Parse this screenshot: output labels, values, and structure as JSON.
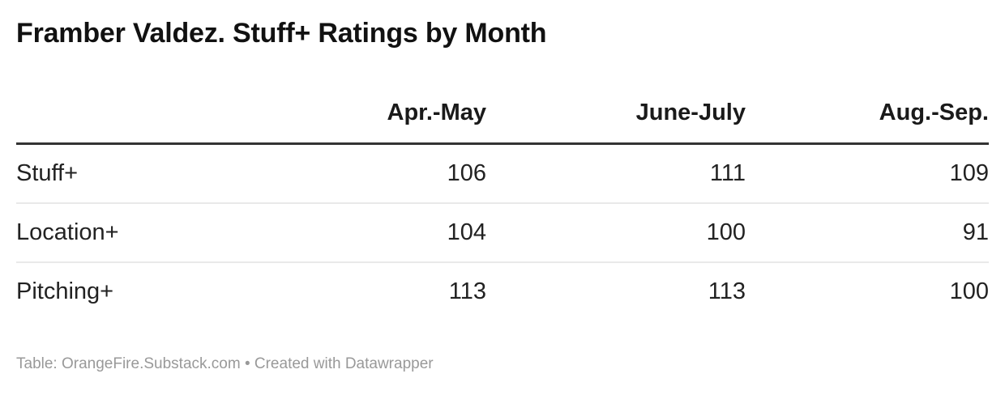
{
  "title": "Framber Valdez. Stuff+ Ratings by Month",
  "table": {
    "columns": [
      "Apr.-May",
      "June-July",
      "Aug.-Sep."
    ],
    "rows": [
      {
        "label": "Stuff+",
        "values": [
          "106",
          "111",
          "109"
        ]
      },
      {
        "label": "Location+",
        "values": [
          "104",
          "100",
          "91"
        ]
      },
      {
        "label": "Pitching+",
        "values": [
          "113",
          "113",
          "100"
        ]
      }
    ]
  },
  "footer": {
    "text": "Table: OrangeFire.Substack.com • Created with Datawrapper"
  },
  "colors": {
    "background": "#ffffff",
    "title_text": "#111111",
    "header_text": "#1a1a1a",
    "cell_text": "#222222",
    "header_rule": "#333333",
    "row_divider": "#e9e9e9",
    "footer_text": "#999999"
  },
  "chart_data": {
    "type": "table",
    "title": "Framber Valdez. Stuff+ Ratings by Month",
    "categories": [
      "Apr.-May",
      "June-July",
      "Aug.-Sep."
    ],
    "series": [
      {
        "name": "Stuff+",
        "values": [
          106,
          111,
          109
        ]
      },
      {
        "name": "Location+",
        "values": [
          104,
          100,
          91
        ]
      },
      {
        "name": "Pitching+",
        "values": [
          113,
          113,
          100
        ]
      }
    ],
    "footnote": "Table: OrangeFire.Substack.com • Created with Datawrapper"
  }
}
